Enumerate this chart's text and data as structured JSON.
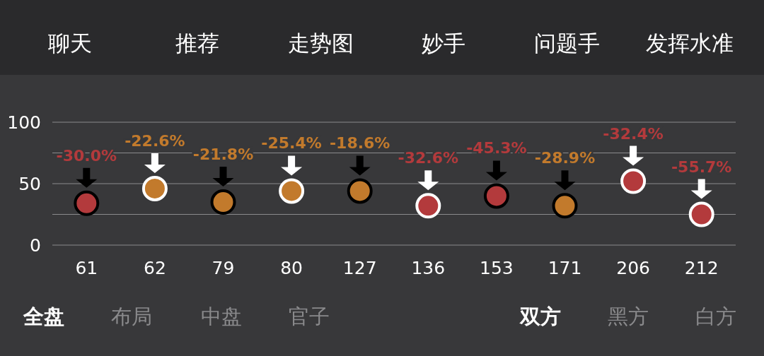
{
  "chart_data": {
    "type": "scatter",
    "categories": [
      "61",
      "62",
      "79",
      "80",
      "127",
      "136",
      "153",
      "171",
      "206",
      "212"
    ],
    "ylim": [
      0,
      100
    ],
    "yticks": [
      0,
      {
        "value": 25,
        "label": null
      },
      50,
      {
        "value": 75,
        "label": null
      },
      100
    ],
    "grid": "y",
    "marker": "circle",
    "series": [
      {
        "color": "#000000",
        "values": [
          34,
          null,
          35,
          null,
          44,
          null,
          40,
          32,
          null,
          null
        ],
        "colors": [
          "#b33a3c",
          null,
          "#c27a2c",
          null,
          "#c27a2c",
          null,
          "#b33a3c",
          "#c27a2c",
          null,
          null
        ]
      },
      {
        "color": "#ffffff",
        "values": [
          null,
          46,
          null,
          44,
          null,
          32,
          null,
          null,
          52,
          25
        ],
        "colors": [
          null,
          "#c27a2c",
          null,
          "#c27a2c",
          null,
          "#b33a3c",
          null,
          null,
          "#b33a3c",
          "#b33a3c"
        ]
      }
    ],
    "annotations": [
      "聊天",
      "推荐",
      "走势图",
      "妙手",
      "问题手",
      "发挥水准",
      "全盘",
      "布局",
      "中盘",
      "官子",
      "双方",
      "黑方",
      "白方",
      {
        "text": "-30.0%",
        "x": "61",
        "y": 34
      },
      {
        "text": "-22.6%",
        "x": "62",
        "y": 46
      },
      {
        "text": "-21.8%",
        "x": "79",
        "y": 35
      },
      {
        "text": "-25.4%",
        "x": "80",
        "y": 44
      },
      {
        "text": "-18.6%",
        "x": "127",
        "y": 44
      },
      {
        "text": "-32.6%",
        "x": "136",
        "y": 32
      },
      {
        "text": "-45.3%",
        "x": "153",
        "y": 40
      },
      {
        "text": "-28.9%",
        "x": "171",
        "y": 32
      },
      {
        "text": "-32.4%",
        "x": "206",
        "y": 52
      },
      {
        "text": "-55.7%",
        "x": "212",
        "y": 25
      }
    ]
  }
}
